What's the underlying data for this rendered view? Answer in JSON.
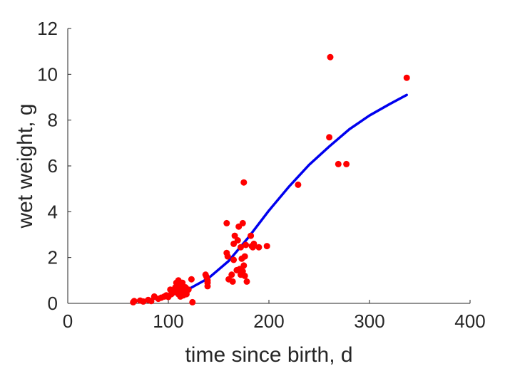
{
  "chart_data": {
    "type": "scatter",
    "title": "",
    "xlabel": "time since birth, d",
    "ylabel": "wet weight, g",
    "xlim": [
      0,
      400
    ],
    "ylim": [
      0,
      12
    ],
    "xticks": [
      0,
      100,
      200,
      300,
      400
    ],
    "yticks": [
      0,
      2,
      4,
      6,
      8,
      10,
      12
    ],
    "grid": false,
    "legend": "none",
    "colors": {
      "points": "#ff0000",
      "fit": "#0000ee",
      "axis": "#262626"
    },
    "series": [
      {
        "kind": "scatter",
        "points": [
          [
            65,
            0.05
          ],
          [
            66,
            0.1
          ],
          [
            72,
            0.12
          ],
          [
            75,
            0.08
          ],
          [
            80,
            0.15
          ],
          [
            83,
            0.1
          ],
          [
            86,
            0.3
          ],
          [
            90,
            0.2
          ],
          [
            93,
            0.25
          ],
          [
            96,
            0.3
          ],
          [
            98,
            0.35
          ],
          [
            100,
            0.28
          ],
          [
            102,
            0.6
          ],
          [
            103,
            0.4
          ],
          [
            104,
            0.45
          ],
          [
            105,
            0.5
          ],
          [
            106,
            0.55
          ],
          [
            107,
            0.7
          ],
          [
            108,
            0.6
          ],
          [
            108,
            0.9
          ],
          [
            109,
            0.8
          ],
          [
            110,
            0.4
          ],
          [
            110,
            1.0
          ],
          [
            111,
            0.5
          ],
          [
            112,
            0.3
          ],
          [
            112,
            0.75
          ],
          [
            113,
            0.6
          ],
          [
            114,
            0.9
          ],
          [
            115,
            0.35
          ],
          [
            116,
            0.5
          ],
          [
            117,
            0.7
          ],
          [
            118,
            0.4
          ],
          [
            120,
            0.6
          ],
          [
            123,
            1.05
          ],
          [
            124,
            0.05
          ],
          [
            137,
            1.25
          ],
          [
            138,
            1.15
          ],
          [
            139,
            1.0
          ],
          [
            139,
            0.9
          ],
          [
            139,
            0.75
          ],
          [
            158,
            3.5
          ],
          [
            158,
            2.2
          ],
          [
            159,
            2.05
          ],
          [
            160,
            1.05
          ],
          [
            163,
            1.25
          ],
          [
            164,
            0.95
          ],
          [
            165,
            1.9
          ],
          [
            165,
            2.6
          ],
          [
            166,
            2.95
          ],
          [
            168,
            1.45
          ],
          [
            169,
            2.75
          ],
          [
            170,
            3.35
          ],
          [
            171,
            1.5
          ],
          [
            172,
            1.25
          ],
          [
            172,
            2.45
          ],
          [
            173,
            1.95
          ],
          [
            174,
            1.4
          ],
          [
            174,
            3.5
          ],
          [
            175,
            5.28
          ],
          [
            175,
            1.65
          ],
          [
            176,
            1.2
          ],
          [
            176,
            2.05
          ],
          [
            177,
            2.55
          ],
          [
            178,
            0.95
          ],
          [
            182,
            2.95
          ],
          [
            183,
            2.5
          ],
          [
            184,
            2.45
          ],
          [
            185,
            2.6
          ],
          [
            190,
            2.45
          ],
          [
            198,
            2.5
          ],
          [
            229,
            5.18
          ],
          [
            260,
            7.25
          ],
          [
            261,
            10.75
          ],
          [
            269,
            6.08
          ],
          [
            277,
            6.08
          ],
          [
            337,
            9.85
          ]
        ]
      },
      {
        "kind": "line",
        "points": [
          [
            65,
            0.1
          ],
          [
            80,
            0.16
          ],
          [
            100,
            0.32
          ],
          [
            120,
            0.62
          ],
          [
            140,
            1.1
          ],
          [
            160,
            1.85
          ],
          [
            180,
            2.9
          ],
          [
            200,
            4.05
          ],
          [
            220,
            5.1
          ],
          [
            240,
            6.05
          ],
          [
            260,
            6.85
          ],
          [
            280,
            7.6
          ],
          [
            300,
            8.2
          ],
          [
            320,
            8.7
          ],
          [
            337,
            9.1
          ]
        ]
      }
    ]
  }
}
